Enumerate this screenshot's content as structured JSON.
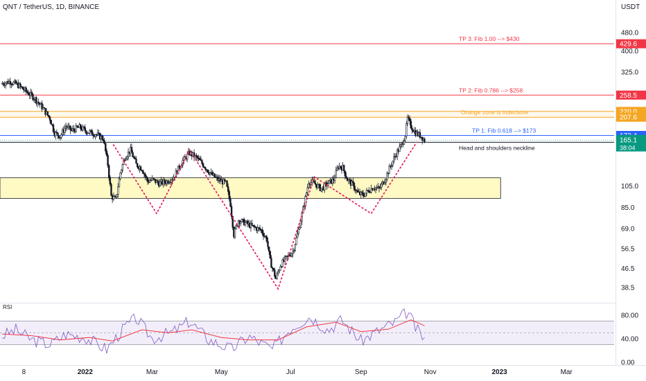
{
  "header": {
    "symbol_title": "QNT / TetherUS, 1D, BINANCE",
    "currency": "USDT"
  },
  "colors": {
    "up": "#131722",
    "down": "#131722",
    "tp_line": "#f23645",
    "orange": "#f5a623",
    "blue_line": "#2962ff",
    "green": "#089981",
    "neckline": "#131722",
    "hs_dots": "#e91e63",
    "zone_fill": "#fff9c4",
    "rsi_line": "#7e57c2",
    "rsi_ma": "#f23645",
    "rsi_band": "#ede7f6"
  },
  "chart_data": [
    {
      "type": "candlestick",
      "title": "QNT / TetherUS, 1D, BINANCE",
      "y_axis": {
        "scale": "log",
        "unit": "USDT",
        "ticks": [
          38.5,
          46.5,
          56.5,
          69.0,
          85.0,
          105.0,
          325.0,
          400.0,
          480.0
        ]
      },
      "x_axis": {
        "ticks": [
          "8",
          "2022",
          "Mar",
          "May",
          "Jul",
          "Sep",
          "Nov",
          "2023",
          "Mar"
        ],
        "tick_dates": [
          "2021-11-08",
          "2022-01-01",
          "2022-03-01",
          "2022-05-01",
          "2022-07-01",
          "2022-09-01",
          "2022-11-01",
          "2023-01-01",
          "2023-03-01"
        ],
        "range": [
          "2021-10-18",
          "2023-04-12"
        ]
      },
      "series": [
        {
          "kind": "close_path",
          "points": [
            [
              "2021-10-20",
              290
            ],
            [
              "2021-10-27",
              296
            ],
            [
              "2021-11-03",
              285
            ],
            [
              "2021-11-10",
              268
            ],
            [
              "2021-11-17",
              252
            ],
            [
              "2021-11-24",
              230
            ],
            [
              "2021-12-01",
              205
            ],
            [
              "2021-12-05",
              178
            ],
            [
              "2021-12-10",
              172
            ],
            [
              "2021-12-15",
              190
            ],
            [
              "2021-12-20",
              182
            ],
            [
              "2021-12-27",
              188
            ],
            [
              "2022-01-03",
              180
            ],
            [
              "2022-01-10",
              176
            ],
            [
              "2022-01-17",
              168
            ],
            [
              "2022-01-21",
              130
            ],
            [
              "2022-01-24",
              95
            ],
            [
              "2022-01-28",
              92
            ],
            [
              "2022-02-01",
              120
            ],
            [
              "2022-02-05",
              140
            ],
            [
              "2022-02-10",
              150
            ],
            [
              "2022-02-15",
              130
            ],
            [
              "2022-02-20",
              125
            ],
            [
              "2022-02-25",
              110
            ],
            [
              "2022-03-01",
              112
            ],
            [
              "2022-03-07",
              108
            ],
            [
              "2022-03-14",
              110
            ],
            [
              "2022-03-20",
              115
            ],
            [
              "2022-03-28",
              135
            ],
            [
              "2022-04-03",
              146
            ],
            [
              "2022-04-10",
              138
            ],
            [
              "2022-04-16",
              128
            ],
            [
              "2022-04-22",
              118
            ],
            [
              "2022-04-28",
              112
            ],
            [
              "2022-05-05",
              108
            ],
            [
              "2022-05-09",
              88
            ],
            [
              "2022-05-12",
              65
            ],
            [
              "2022-05-16",
              75
            ],
            [
              "2022-05-22",
              73
            ],
            [
              "2022-05-29",
              70
            ],
            [
              "2022-06-05",
              68
            ],
            [
              "2022-06-10",
              62
            ],
            [
              "2022-06-13",
              50
            ],
            [
              "2022-06-18",
              42
            ],
            [
              "2022-06-22",
              48
            ],
            [
              "2022-06-28",
              52
            ],
            [
              "2022-07-03",
              55
            ],
            [
              "2022-07-08",
              68
            ],
            [
              "2022-07-13",
              88
            ],
            [
              "2022-07-17",
              110
            ],
            [
              "2022-07-22",
              108
            ],
            [
              "2022-07-28",
              102
            ],
            [
              "2022-08-03",
              108
            ],
            [
              "2022-08-08",
              112
            ],
            [
              "2022-08-12",
              128
            ],
            [
              "2022-08-16",
              126
            ],
            [
              "2022-08-20",
              112
            ],
            [
              "2022-08-25",
              106
            ],
            [
              "2022-08-29",
              98
            ],
            [
              "2022-09-03",
              96
            ],
            [
              "2022-09-07",
              100
            ],
            [
              "2022-09-12",
              104
            ],
            [
              "2022-09-17",
              102
            ],
            [
              "2022-09-22",
              112
            ],
            [
              "2022-09-27",
              128
            ],
            [
              "2022-10-02",
              145
            ],
            [
              "2022-10-07",
              158
            ],
            [
              "2022-10-10",
              175
            ],
            [
              "2022-10-12",
              205
            ],
            [
              "2022-10-15",
              190
            ],
            [
              "2022-10-19",
              178
            ],
            [
              "2022-10-24",
              172
            ],
            [
              "2022-10-27",
              165.1
            ]
          ]
        }
      ],
      "levels": [
        {
          "name": "TP 3: Fib 1.00 --> $430",
          "value": 429.6,
          "badge": "429.6",
          "color": "tp_line"
        },
        {
          "name": "TP 2: Fib 0.786 --> $258",
          "value": 258.5,
          "badge": "258.5",
          "color": "tp_line"
        },
        {
          "name": "",
          "value": 220.0,
          "badge": "220.0",
          "color": "orange"
        },
        {
          "name": "Orange zone is indecisive",
          "value": 207.6,
          "badge": "207.6",
          "color": "orange"
        },
        {
          "name": "TP 1: Fib 0.618 --> $173",
          "value": 173.4,
          "badge": "173.4",
          "color": "blue_line"
        },
        {
          "name": "Head and shoulders neckline",
          "value": 162.0,
          "badge": "162.0",
          "color": "neckline"
        }
      ],
      "last_price": {
        "value": 165.1,
        "label": "165.1",
        "countdown": "38:04"
      },
      "zone": {
        "low": 93,
        "high": 114,
        "from": "2021-10-18",
        "to": "2023-01-02"
      },
      "head_and_shoulders": [
        [
          "2022-01-26",
          158
        ],
        [
          "2022-03-05",
          80
        ],
        [
          "2022-04-03",
          150
        ],
        [
          "2022-06-20",
          38
        ],
        [
          "2022-07-22",
          115
        ],
        [
          "2022-09-10",
          80
        ],
        [
          "2022-10-20",
          162
        ]
      ]
    },
    {
      "type": "line",
      "title": "RSI",
      "y_axis": {
        "ticks": [
          0.0,
          40.0,
          80.0
        ],
        "range": [
          -5,
          100
        ],
        "band": [
          30,
          70
        ],
        "midline": 50
      },
      "series": [
        {
          "kind": "rsi",
          "points": [
            [
              "2021-10-20",
              45
            ],
            [
              "2021-11-01",
              55
            ],
            [
              "2021-11-15",
              38
            ],
            [
              "2021-12-01",
              30
            ],
            [
              "2021-12-15",
              48
            ],
            [
              "2022-01-01",
              42
            ],
            [
              "2022-01-20",
              22
            ],
            [
              "2022-02-05",
              60
            ],
            [
              "2022-02-15",
              75
            ],
            [
              "2022-03-01",
              40
            ],
            [
              "2022-03-20",
              52
            ],
            [
              "2022-04-03",
              70
            ],
            [
              "2022-04-20",
              38
            ],
            [
              "2022-05-10",
              22
            ],
            [
              "2022-05-25",
              44
            ],
            [
              "2022-06-15",
              22
            ],
            [
              "2022-07-01",
              58
            ],
            [
              "2022-07-18",
              78
            ],
            [
              "2022-08-03",
              55
            ],
            [
              "2022-08-15",
              72
            ],
            [
              "2022-09-01",
              36
            ],
            [
              "2022-09-15",
              52
            ],
            [
              "2022-10-01",
              68
            ],
            [
              "2022-10-12",
              86
            ],
            [
              "2022-10-20",
              55
            ],
            [
              "2022-10-27",
              40
            ]
          ]
        },
        {
          "kind": "rsi_ma",
          "points": [
            [
              "2021-10-20",
              48
            ],
            [
              "2021-11-15",
              45
            ],
            [
              "2021-12-10",
              38
            ],
            [
              "2022-01-05",
              42
            ],
            [
              "2022-01-25",
              36
            ],
            [
              "2022-02-20",
              55
            ],
            [
              "2022-03-15",
              50
            ],
            [
              "2022-04-05",
              55
            ],
            [
              "2022-05-01",
              42
            ],
            [
              "2022-05-25",
              38
            ],
            [
              "2022-06-20",
              38
            ],
            [
              "2022-07-15",
              60
            ],
            [
              "2022-08-10",
              68
            ],
            [
              "2022-09-01",
              52
            ],
            [
              "2022-09-25",
              56
            ],
            [
              "2022-10-15",
              72
            ],
            [
              "2022-10-27",
              62
            ]
          ]
        }
      ]
    }
  ]
}
